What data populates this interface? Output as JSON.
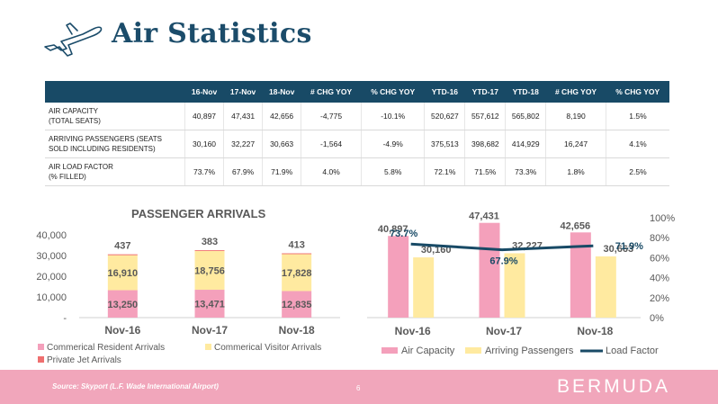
{
  "title": "Air Statistics",
  "table": {
    "headers": [
      "",
      "16-Nov",
      "17-Nov",
      "18-Nov",
      "# CHG YOY",
      "% CHG YOY",
      "YTD-16",
      "YTD-17",
      "YTD-18",
      "# CHG YOY",
      "% CHG YOY"
    ],
    "rows": [
      {
        "label_line1": "AIR CAPACITY",
        "label_line2": "(TOTAL SEATS)",
        "cells": [
          "40,897",
          "47,431",
          "42,656",
          "-4,775",
          "-10.1%",
          "520,627",
          "557,612",
          "565,802",
          "8,190",
          "1.5%"
        ]
      },
      {
        "label_line1": "ARRIVING PASSENGERS (SEATS",
        "label_line2": "SOLD INCLUDING RESIDENTS)",
        "cells": [
          "30,160",
          "32,227",
          "30,663",
          "-1,564",
          "-4.9%",
          "375,513",
          "398,682",
          "414,929",
          "16,247",
          "4.1%"
        ]
      },
      {
        "label_line1": "AIR LOAD FACTOR",
        "label_line2": "(% FILLED)",
        "cells": [
          "73.7%",
          "67.9%",
          "71.9%",
          "4.0%",
          "5.8%",
          "72.1%",
          "71.5%",
          "73.3%",
          "1.8%",
          "2.5%"
        ]
      }
    ]
  },
  "chart_data": [
    {
      "type": "bar",
      "stacked": true,
      "title": "PASSENGER ARRIVALS",
      "categories": [
        "Nov-16",
        "Nov-17",
        "Nov-18"
      ],
      "series": [
        {
          "name": "Commerical Resident Arrivals",
          "values": [
            13250,
            13471,
            12835
          ],
          "labels": [
            "13,250",
            "13,471",
            "12,835"
          ],
          "color": "#f4a0bb"
        },
        {
          "name": "Commerical Visitor Arrivals",
          "values": [
            16910,
            18756,
            17828
          ],
          "labels": [
            "16,910",
            "18,756",
            "17,828"
          ],
          "color": "#ffeaa0"
        },
        {
          "name": "Private Jet Arrivals",
          "values": [
            437,
            383,
            413
          ],
          "labels": [
            "437",
            "383",
            "413"
          ],
          "color": "#ef6f6f"
        }
      ],
      "ylim": [
        0,
        40000
      ],
      "yticks": [
        "-",
        "10,000",
        "20,000",
        "30,000",
        "40,000"
      ],
      "grid": false,
      "legend": "bottom"
    },
    {
      "type": "bar",
      "categories": [
        "Nov-16",
        "Nov-17",
        "Nov-18"
      ],
      "series": [
        {
          "name": "Air Capacity",
          "values": [
            40897,
            47431,
            42656
          ],
          "labels": [
            "40,897",
            "47,431",
            "42,656"
          ],
          "color": "#f4a0bb"
        },
        {
          "name": "Arriving Passengers",
          "values": [
            30160,
            32227,
            30663
          ],
          "labels": [
            "30,160",
            "32,227",
            "30,663"
          ],
          "color": "#ffeaa0"
        }
      ],
      "line_series": {
        "name": "Load Factor",
        "values": [
          73.7,
          67.9,
          71.9
        ],
        "labels": [
          "73.7%",
          "67.9%",
          "71.9%"
        ],
        "color": "#184a66"
      },
      "ylim": [
        0,
        50000
      ],
      "y2lim": [
        0,
        100
      ],
      "y2ticks": [
        "0%",
        "20%",
        "40%",
        "60%",
        "80%",
        "100%"
      ],
      "grid": false,
      "legend": "bottom"
    }
  ],
  "footer": {
    "source": "Source: Skyport (L.F. Wade International Airport)",
    "page": "6",
    "brand": "BERMUDA"
  }
}
